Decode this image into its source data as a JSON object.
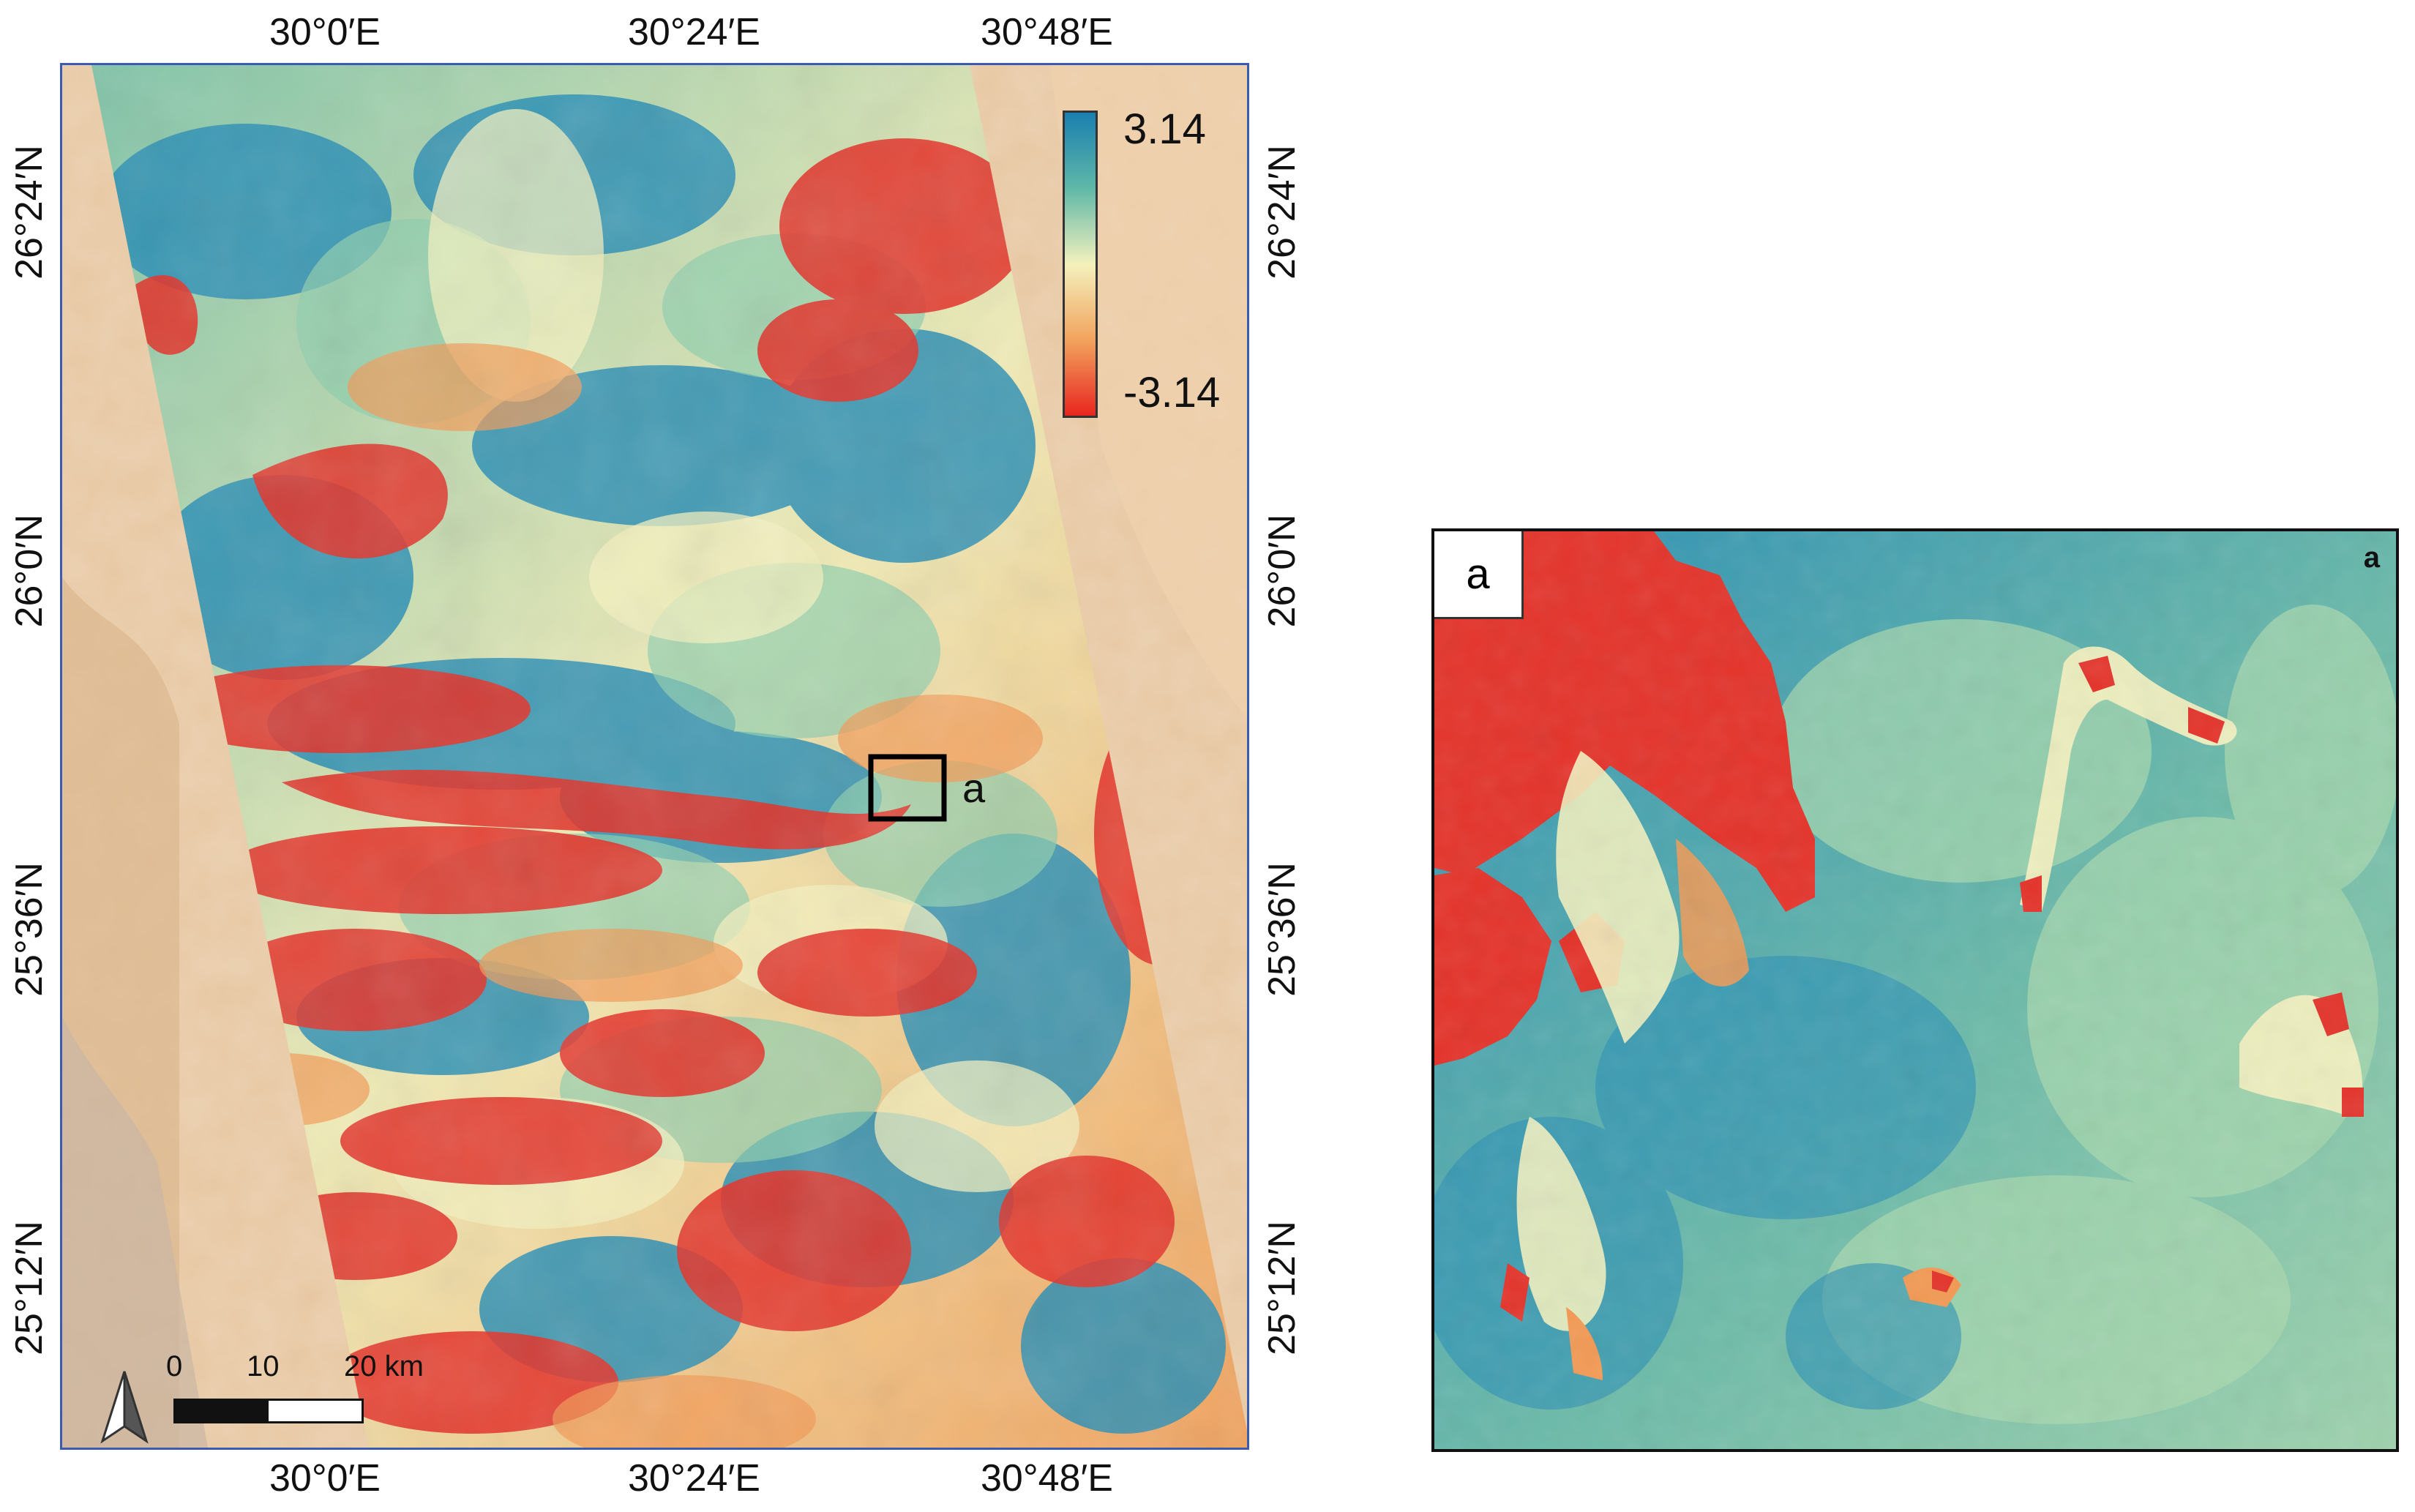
{
  "main_map": {
    "top_ticks": [
      "30°0′E",
      "30°24′E",
      "30°48′E"
    ],
    "bottom_ticks": [
      "30°0′E",
      "30°24′E",
      "30°48′E"
    ],
    "left_ticks": [
      "26°24′N",
      "26°0′N",
      "25°36′N",
      "25°12′N"
    ],
    "right_ticks": [
      "26°24′N",
      "26°0′N",
      "25°36′N",
      "25°12′N"
    ],
    "colorbar": {
      "max_label": "3.14",
      "min_label": "-3.14",
      "colors": [
        "#1a7fb0",
        "#5fb8a8",
        "#f3f1bd",
        "#f2a35e",
        "#e8261f"
      ]
    },
    "scale_bar": {
      "labels": [
        "0",
        "10",
        "20 km"
      ]
    },
    "highlight_label": "a"
  },
  "inset": {
    "label": "a",
    "corner_mark": "a"
  },
  "colors": {
    "red": "#e4332a",
    "teal": "#2a8fb5",
    "green": "#79c3a7",
    "cream": "#f1efbf",
    "orange": "#f39a55",
    "desert": "#e9c9a4"
  }
}
